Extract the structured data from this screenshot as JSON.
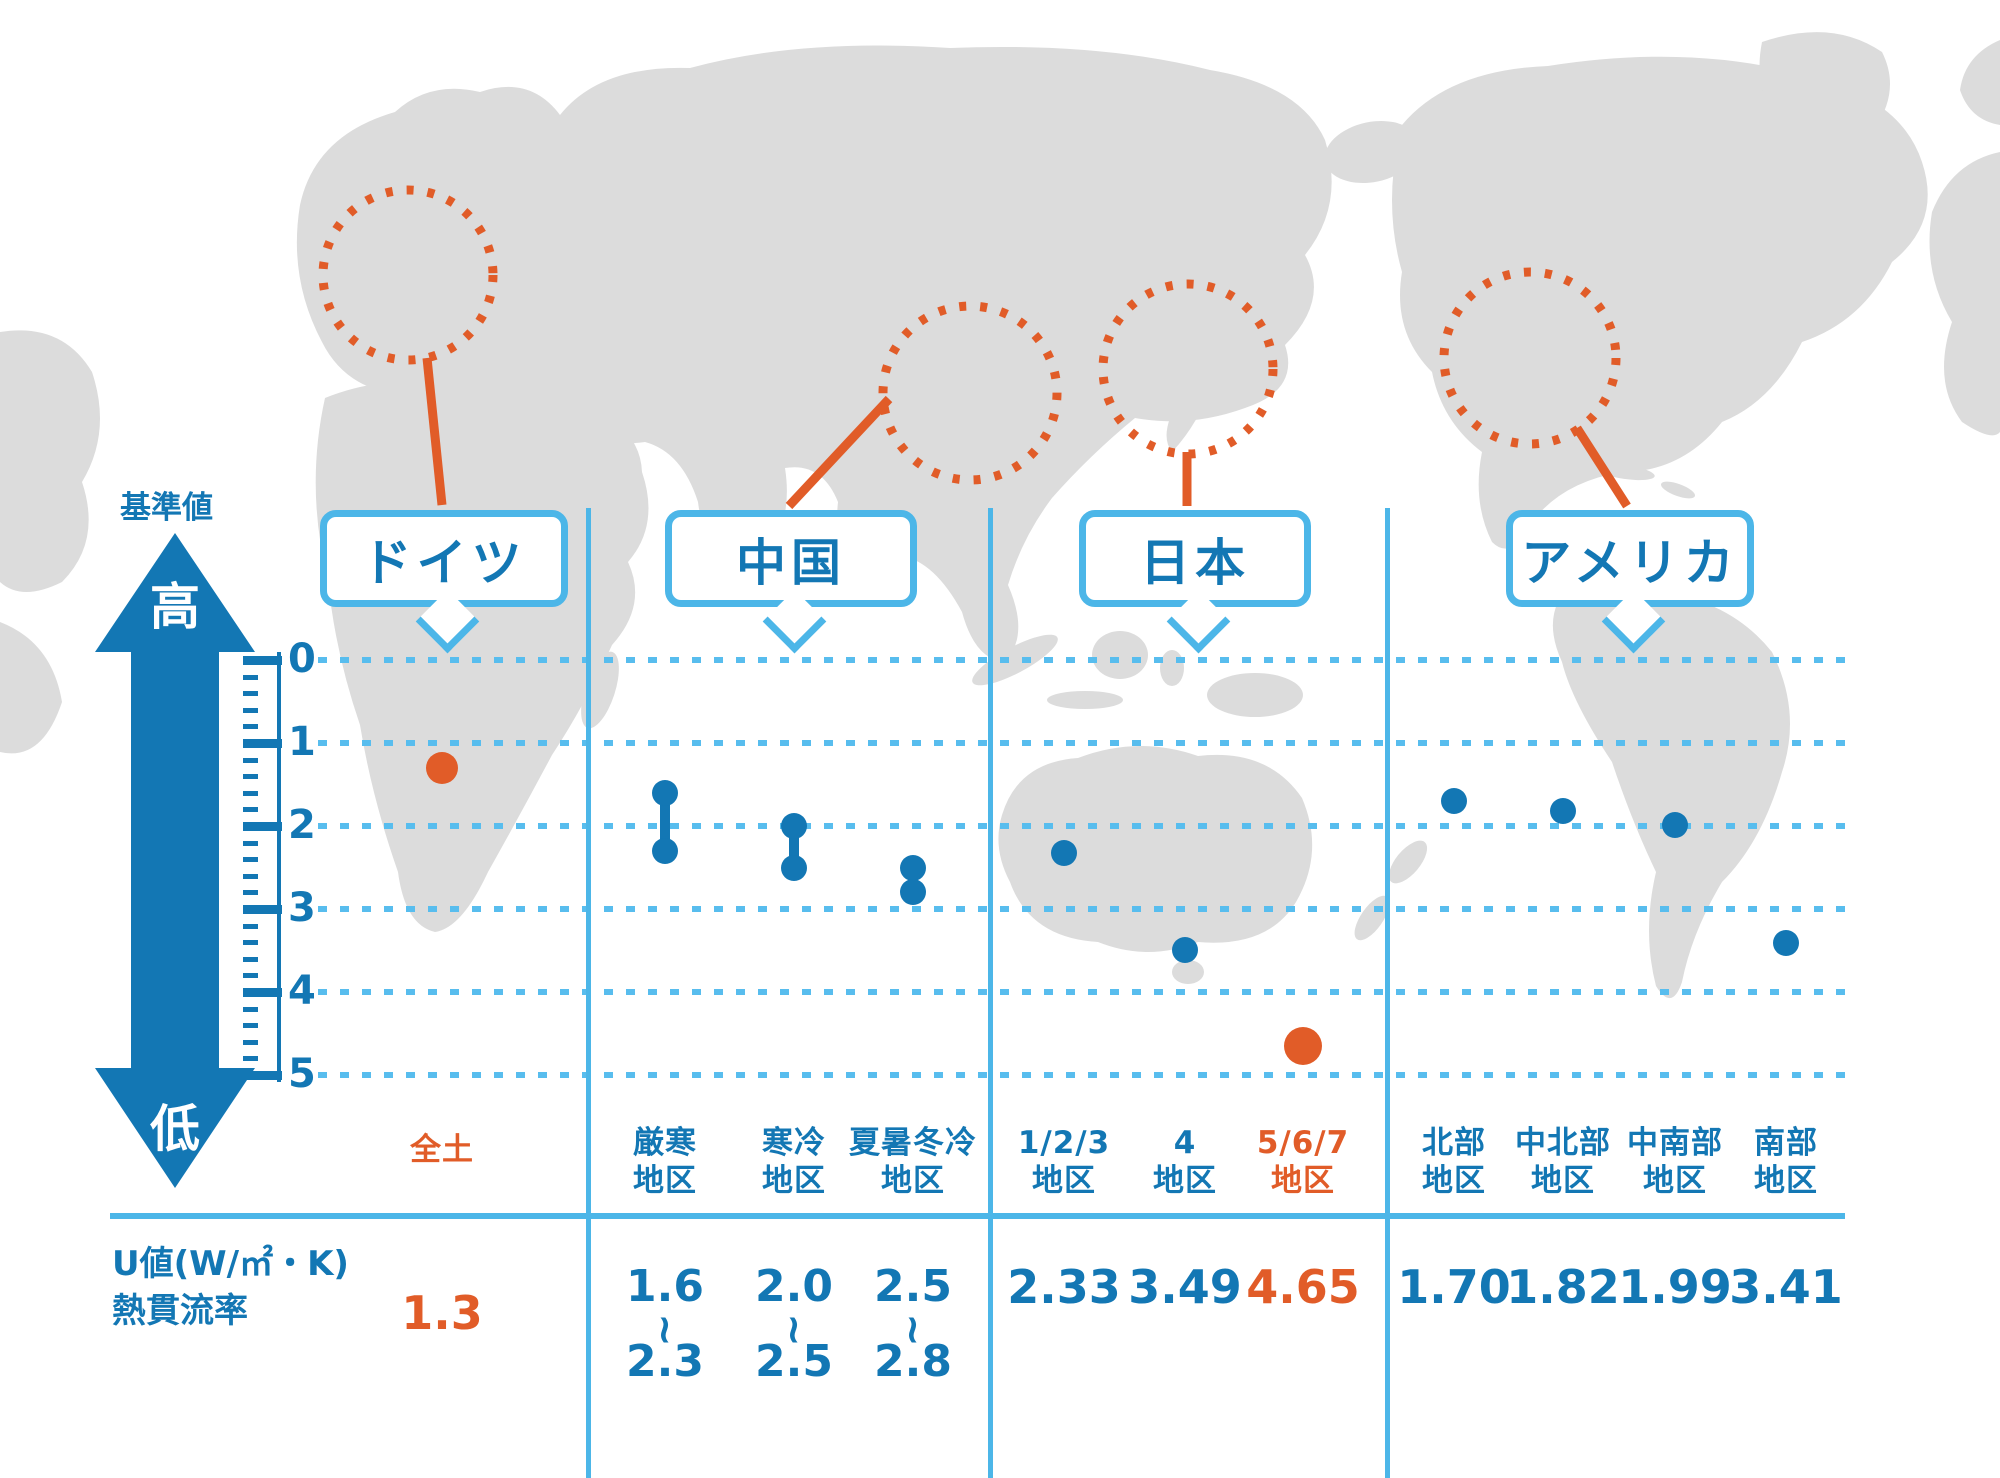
{
  "axis": {
    "label": "基準値",
    "high_label": "高",
    "low_label": "低",
    "yticks": [
      0,
      1,
      2,
      3,
      4,
      5
    ],
    "ymin": 0,
    "ymax": 5
  },
  "table": {
    "row_label_line1": "U値(W/㎡・K)",
    "row_label_line2": "熱貫流率"
  },
  "colors": {
    "primary_blue": "#1377b4",
    "light_blue": "#4cb6e8",
    "grid_blue": "#58bdee",
    "accent_orange": "#e15c28",
    "map_gray": "#dcdcdc"
  },
  "chart_data": {
    "type": "scatter",
    "ylabel": "U値(W/㎡・K) 熱貫流率",
    "ylim": [
      0,
      5
    ],
    "grid": true,
    "groups": [
      {
        "country": "ドイツ",
        "regions": [
          {
            "name": "全土",
            "name_lines": [
              "全土"
            ],
            "kind": "point",
            "value": 1.3,
            "value_label": "1.3",
            "color": "orange",
            "emphasized": false
          }
        ]
      },
      {
        "country": "中国",
        "regions": [
          {
            "name": "厳寒地区",
            "name_lines": [
              "厳寒",
              "地区"
            ],
            "kind": "range",
            "low": 1.6,
            "high": 2.3,
            "low_label": "1.6",
            "high_label": "2.3",
            "value_label": "1.6〜2.3",
            "color": "blue"
          },
          {
            "name": "寒冷地区",
            "name_lines": [
              "寒冷",
              "地区"
            ],
            "kind": "range",
            "low": 2.0,
            "high": 2.5,
            "low_label": "2.0",
            "high_label": "2.5",
            "value_label": "2.0〜2.5",
            "color": "blue"
          },
          {
            "name": "夏暑冬冷地区",
            "name_lines": [
              "夏暑冬冷",
              "地区"
            ],
            "kind": "range",
            "low": 2.5,
            "high": 2.8,
            "low_label": "2.5",
            "high_label": "2.8",
            "value_label": "2.5〜2.8",
            "color": "blue"
          }
        ]
      },
      {
        "country": "日本",
        "regions": [
          {
            "name": "1/2/3地区",
            "name_lines": [
              "1/2/3",
              "地区"
            ],
            "kind": "point",
            "value": 2.33,
            "value_label": "2.33",
            "color": "blue",
            "emphasized": false
          },
          {
            "name": "4地区",
            "name_lines": [
              "4",
              "地区"
            ],
            "kind": "point",
            "value": 3.49,
            "value_label": "3.49",
            "color": "blue",
            "emphasized": false
          },
          {
            "name": "5/6/7地区",
            "name_lines": [
              "5/6/7",
              "地区"
            ],
            "kind": "point",
            "value": 4.65,
            "value_label": "4.65",
            "color": "orange",
            "emphasized": true
          }
        ]
      },
      {
        "country": "アメリカ",
        "regions": [
          {
            "name": "北部地区",
            "name_lines": [
              "北部",
              "地区"
            ],
            "kind": "point",
            "value": 1.7,
            "value_label": "1.70",
            "color": "blue",
            "emphasized": false
          },
          {
            "name": "中北部地区",
            "name_lines": [
              "中北部",
              "地区"
            ],
            "kind": "point",
            "value": 1.82,
            "value_label": "1.82",
            "color": "blue",
            "emphasized": false
          },
          {
            "name": "中南部地区",
            "name_lines": [
              "中南部",
              "地区"
            ],
            "kind": "point",
            "value": 1.99,
            "value_label": "1.99",
            "color": "blue",
            "emphasized": false
          },
          {
            "name": "南部地区",
            "name_lines": [
              "南部",
              "地区"
            ],
            "kind": "point",
            "value": 3.41,
            "value_label": "3.41",
            "color": "blue",
            "emphasized": false
          }
        ]
      }
    ]
  }
}
